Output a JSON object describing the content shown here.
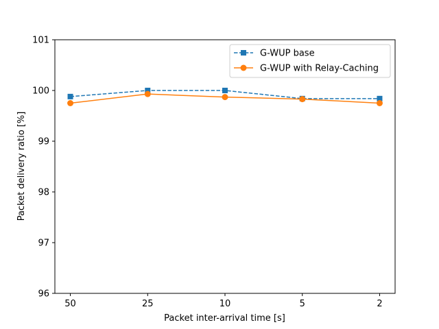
{
  "chart_data": {
    "type": "line",
    "title": "",
    "xlabel": "Packet inter-arrival time [s]",
    "ylabel": "Packet delivery ratio [%]",
    "categories": [
      "50",
      "25",
      "10",
      "5",
      "2"
    ],
    "ylim": [
      96,
      101
    ],
    "yticks": [
      "96",
      "97",
      "98",
      "99",
      "100",
      "101"
    ],
    "grid": false,
    "legend_position": "top-right",
    "series": [
      {
        "name": "G-WUP base",
        "values": [
          99.88,
          100.0,
          100.0,
          99.84,
          99.84
        ],
        "color": "#1f77b4",
        "line_style": "dashed",
        "marker": "square"
      },
      {
        "name": "G-WUP with Relay-Caching",
        "values": [
          99.75,
          99.93,
          99.87,
          99.83,
          99.75
        ],
        "color": "#ff7f0e",
        "line_style": "solid",
        "marker": "circle"
      }
    ]
  }
}
